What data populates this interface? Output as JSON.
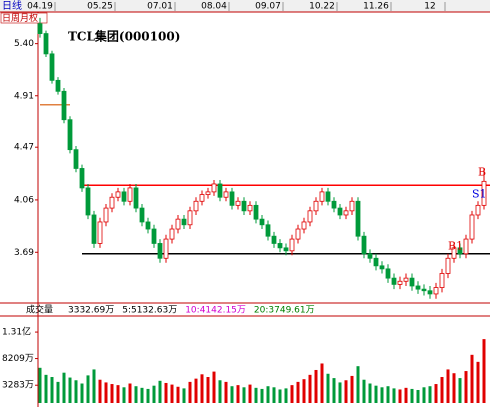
{
  "chart_data": {
    "type": "candlestick",
    "period_label": "日线",
    "period_buttons": "日周月权",
    "title": "TCL集团(000100)",
    "log_scale": true,
    "up_color": "#e00000",
    "down_color": "#009a3a",
    "ylim": [
      3.37,
      5.7
    ],
    "yticks": [
      {
        "value": 5.4,
        "label": "5.40"
      },
      4.91,
      4.47,
      4.06,
      3.69
    ],
    "xticks": [
      {
        "value": 0,
        "label": "04.19"
      },
      {
        "value": 10,
        "label": "05.25"
      },
      {
        "value": 20,
        "label": "07.01"
      },
      {
        "value": 29,
        "label": "08.04"
      },
      {
        "value": 38,
        "label": "09.07"
      },
      {
        "value": 47,
        "label": "10.22"
      },
      {
        "value": 56,
        "label": "11.26"
      },
      {
        "value": 65,
        "label": "12"
      }
    ],
    "ohlc": [
      [
        5.6,
        5.66,
        5.46,
        5.5
      ],
      [
        5.5,
        5.53,
        5.27,
        5.3
      ],
      [
        5.3,
        5.33,
        5.02,
        5.05
      ],
      [
        5.05,
        5.08,
        4.92,
        4.95
      ],
      [
        4.95,
        4.98,
        4.67,
        4.7
      ],
      [
        4.7,
        4.73,
        4.42,
        4.45
      ],
      [
        4.45,
        4.48,
        4.27,
        4.3
      ],
      [
        4.3,
        4.33,
        4.12,
        4.15
      ],
      [
        4.15,
        4.18,
        3.92,
        3.95
      ],
      [
        3.95,
        3.98,
        3.72,
        3.75
      ],
      [
        3.75,
        3.93,
        3.72,
        3.9
      ],
      [
        3.9,
        4.03,
        3.87,
        4.0
      ],
      [
        4.0,
        4.11,
        3.97,
        4.08
      ],
      [
        4.08,
        4.15,
        4.05,
        4.12
      ],
      [
        4.12,
        4.15,
        4.02,
        4.05
      ],
      [
        4.05,
        4.18,
        4.02,
        4.15
      ],
      [
        4.15,
        4.18,
        3.97,
        4.0
      ],
      [
        4.0,
        4.03,
        3.87,
        3.9
      ],
      [
        3.9,
        3.93,
        3.82,
        3.85
      ],
      [
        3.85,
        3.88,
        3.72,
        3.75
      ],
      [
        3.75,
        3.78,
        3.62,
        3.65
      ],
      [
        3.65,
        3.81,
        3.62,
        3.78
      ],
      [
        3.78,
        3.88,
        3.75,
        3.85
      ],
      [
        3.85,
        3.95,
        3.82,
        3.92
      ],
      [
        3.92,
        3.95,
        3.85,
        3.88
      ],
      [
        3.88,
        4.01,
        3.85,
        3.98
      ],
      [
        3.98,
        4.08,
        3.95,
        4.05
      ],
      [
        4.05,
        4.13,
        4.02,
        4.1
      ],
      [
        4.1,
        4.15,
        4.07,
        4.12
      ],
      [
        4.12,
        4.21,
        4.09,
        4.18
      ],
      [
        4.18,
        4.21,
        4.05,
        4.08
      ],
      [
        4.08,
        4.15,
        4.05,
        4.12
      ],
      [
        4.12,
        4.15,
        3.99,
        4.02
      ],
      [
        4.02,
        4.08,
        3.99,
        4.05
      ],
      [
        4.05,
        4.08,
        3.95,
        3.98
      ],
      [
        3.98,
        4.05,
        3.95,
        4.02
      ],
      [
        4.02,
        4.05,
        3.89,
        3.92
      ],
      [
        3.92,
        3.95,
        3.85,
        3.88
      ],
      [
        3.88,
        3.91,
        3.77,
        3.8
      ],
      [
        3.8,
        3.83,
        3.72,
        3.75
      ],
      [
        3.75,
        3.78,
        3.69,
        3.72
      ],
      [
        3.72,
        3.75,
        3.67,
        3.7
      ],
      [
        3.7,
        3.81,
        3.67,
        3.78
      ],
      [
        3.78,
        3.88,
        3.75,
        3.85
      ],
      [
        3.85,
        3.93,
        3.82,
        3.9
      ],
      [
        3.9,
        4.01,
        3.87,
        3.98
      ],
      [
        3.98,
        4.08,
        3.95,
        4.05
      ],
      [
        4.05,
        4.15,
        4.02,
        4.12
      ],
      [
        4.12,
        4.15,
        4.02,
        4.05
      ],
      [
        4.05,
        4.08,
        3.97,
        4.0
      ],
      [
        4.0,
        4.03,
        3.92,
        3.95
      ],
      [
        3.95,
        4.01,
        3.92,
        3.98
      ],
      [
        3.98,
        4.08,
        3.95,
        4.05
      ],
      [
        4.05,
        4.08,
        3.77,
        3.8
      ],
      [
        3.8,
        3.83,
        3.65,
        3.68
      ],
      [
        3.68,
        3.71,
        3.62,
        3.65
      ],
      [
        3.65,
        3.68,
        3.57,
        3.6
      ],
      [
        3.6,
        3.63,
        3.55,
        3.58
      ],
      [
        3.58,
        3.61,
        3.49,
        3.52
      ],
      [
        3.52,
        3.55,
        3.45,
        3.48
      ],
      [
        3.48,
        3.53,
        3.45,
        3.5
      ],
      [
        3.5,
        3.55,
        3.47,
        3.52
      ],
      [
        3.52,
        3.55,
        3.44,
        3.47
      ],
      [
        3.47,
        3.5,
        3.42,
        3.45
      ],
      [
        3.45,
        3.48,
        3.41,
        3.44
      ],
      [
        3.44,
        3.47,
        3.39,
        3.42
      ],
      [
        3.42,
        3.49,
        3.39,
        3.46
      ],
      [
        3.46,
        3.58,
        3.43,
        3.55
      ],
      [
        3.55,
        3.68,
        3.52,
        3.65
      ],
      [
        3.65,
        3.75,
        3.62,
        3.72
      ],
      [
        3.72,
        3.75,
        3.65,
        3.68
      ],
      [
        3.68,
        3.81,
        3.65,
        3.78
      ],
      [
        3.78,
        3.98,
        3.75,
        3.95
      ],
      [
        3.95,
        4.05,
        3.92,
        4.02
      ],
      [
        4.02,
        4.3,
        3.99,
        4.2
      ]
    ],
    "hlines": [
      {
        "value": 4.17,
        "color": "#ff0000",
        "from": 7
      },
      {
        "value": 3.68,
        "color": "#000000",
        "from": 7
      }
    ],
    "marker": {
      "value": 4.83,
      "from": 0,
      "to": 5,
      "color": "#e08040"
    },
    "annotations": [
      {
        "text": "B",
        "index": 73,
        "value": 4.27,
        "color": "#e00000"
      },
      {
        "text": "S1",
        "index": 72,
        "value": 4.1,
        "color": "#0000e0"
      },
      {
        "text": "B1",
        "index": 68,
        "value": 3.73,
        "color": "#e00000"
      }
    ],
    "volume": {
      "label": "成交量",
      "ma_labels": [
        {
          "text": "3332.69万",
          "color": "#000000"
        },
        {
          "text": "5:5132.63万",
          "color": "#000000"
        },
        {
          "text": "10:4142.15万",
          "color": "#d000d0"
        },
        {
          "text": "20:3749.61万",
          "color": "#008000"
        }
      ],
      "ylim": [
        0,
        15700
      ],
      "yticks": [
        {
          "value": 13100,
          "label": "1.31亿"
        },
        {
          "value": 8209,
          "label": "8209万"
        },
        {
          "value": 3283,
          "label": "3283万"
        }
      ],
      "values": [
        6500,
        5200,
        4800,
        3900,
        5600,
        4700,
        4200,
        3600,
        5100,
        6200,
        4300,
        3800,
        3500,
        3300,
        2900,
        3600,
        3100,
        2800,
        2600,
        3200,
        4100,
        3700,
        3400,
        3000,
        2700,
        3900,
        4500,
        5300,
        4800,
        5800,
        4200,
        3900,
        3100,
        3300,
        2900,
        3400,
        2800,
        2600,
        3100,
        2900,
        2500,
        2700,
        3300,
        3900,
        4400,
        5200,
        6100,
        7300,
        5400,
        4600,
        3800,
        4200,
        5000,
        6800,
        4300,
        3600,
        3200,
        2900,
        3100,
        2700,
        2500,
        2800,
        2600,
        2400,
        2900,
        3100,
        3500,
        4800,
        6200,
        5500,
        4600,
        5900,
        8900,
        7600,
        11800
      ]
    }
  }
}
